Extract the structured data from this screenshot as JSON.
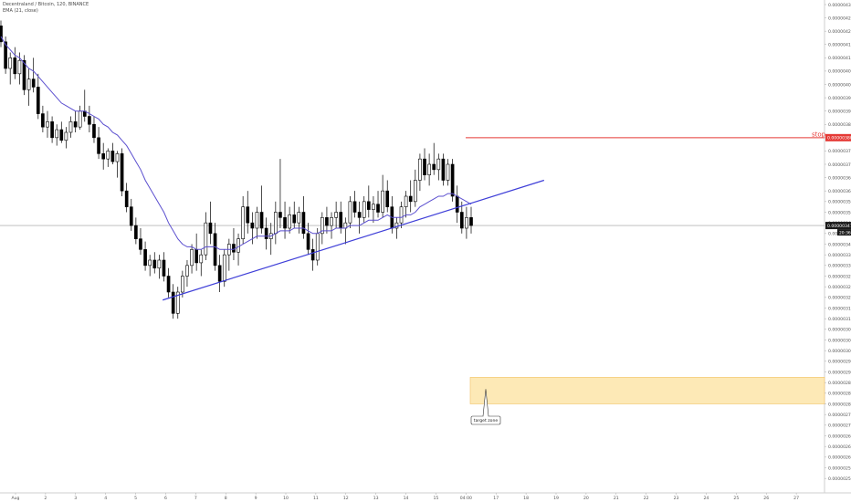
{
  "header": {
    "symbol_line": "Decentraland / Bitcoin, 120, BINANCE",
    "indicator_line": "EMA (21, close)"
  },
  "colors": {
    "candle": "#000000",
    "ema": "#5b4fcf",
    "trendline": "#3f3fd8",
    "stop_line": "#e53935",
    "target_zone_fill": "#fde9b6",
    "target_zone_border": "#f2c266",
    "last_price_line": "#9e9e9e",
    "axis_text": "#555555"
  },
  "chart_data": {
    "type": "candlestick",
    "indicator": "EMA (21, close)",
    "ylim": [
      2.5e-06,
      4.3e-06
    ],
    "yticks": [
      "0.00000430",
      "0.00000425",
      "0.00000420",
      "0.00000415",
      "0.00000410",
      "0.00000405",
      "0.00000400",
      "0.00000395",
      "0.00000390",
      "0.00000385",
      "0.00000380",
      "0.00000375",
      "0.00000370",
      "0.00000365",
      "0.00000360",
      "0.00000356",
      "0.00000352",
      "0.00000348",
      "0.00000344",
      "0.00000340",
      "0.00000336",
      "0.00000332",
      "0.00000328",
      "0.00000324",
      "0.00000320",
      "0.00000316",
      "0.00000312",
      "0.00000308",
      "0.00000304",
      "0.00000300",
      "0.00000296",
      "0.00000292",
      "0.00000288",
      "0.00000284",
      "0.00000280",
      "0.00000276",
      "0.00000272",
      "0.00000268",
      "0.00000264",
      "0.00000260",
      "0.00000256",
      "0.00000252"
    ],
    "xticks": [
      "Aug",
      "2",
      "3",
      "4",
      "5",
      "6",
      "7",
      "8",
      "9",
      "10",
      "11",
      "12",
      "13",
      "14",
      "15",
      "04:00",
      "17",
      "18",
      "19",
      "20",
      "21",
      "22",
      "23",
      "24",
      "25",
      "26",
      "27",
      "28"
    ],
    "price_labels": {
      "stop": "0.00000380",
      "last": "0.00000347",
      "countdown": "20:36"
    },
    "annotations": {
      "stop_text": "stop",
      "target_text": "target zone"
    },
    "levels": {
      "stop": 3.8e-06,
      "last_price": 3.47e-06,
      "target_zone": [
        2.8e-06,
        2.9e-06
      ]
    },
    "trendline": {
      "start": {
        "day": 4.9,
        "price": 3.19e-06
      },
      "end": {
        "day": 17.6,
        "price": 3.64e-06
      }
    },
    "candles": [
      [
        4.22e-06,
        4.24e-06,
        4.14e-06,
        4.16e-06
      ],
      [
        4.16e-06,
        4.18e-06,
        4.04e-06,
        4.06e-06
      ],
      [
        4.06e-06,
        4.12e-06,
        4e-06,
        4.1e-06
      ],
      [
        4.1e-06,
        4.14e-06,
        4.02e-06,
        4.04e-06
      ],
      [
        4.04e-06,
        4.12e-06,
        4e-06,
        4.09e-06
      ],
      [
        4.09e-06,
        4.11e-06,
        3.96e-06,
        3.98e-06
      ],
      [
        3.98e-06,
        4.06e-06,
        3.92e-06,
        4.02e-06
      ],
      [
        4.02e-06,
        4.1e-06,
        3.97e-06,
        3.99e-06
      ],
      [
        3.99e-06,
        4.04e-06,
        3.87e-06,
        3.89e-06
      ],
      [
        3.89e-06,
        3.92e-06,
        3.82e-06,
        3.84e-06
      ],
      [
        3.84e-06,
        3.9e-06,
        3.8e-06,
        3.86e-06
      ],
      [
        3.86e-06,
        3.88e-06,
        3.78e-06,
        3.8e-06
      ],
      [
        3.8e-06,
        3.85e-06,
        3.77e-06,
        3.83e-06
      ],
      [
        3.83e-06,
        3.86e-06,
        3.78e-06,
        3.79e-06
      ],
      [
        3.79e-06,
        3.84e-06,
        3.76e-06,
        3.82e-06
      ],
      [
        3.82e-06,
        3.88e-06,
        3.8e-06,
        3.86e-06
      ],
      [
        3.86e-06,
        3.9e-06,
        3.82e-06,
        3.84e-06
      ],
      [
        3.84e-06,
        3.92e-06,
        3.83e-06,
        3.9e-06
      ],
      [
        3.9e-06,
        3.98e-06,
        3.86e-06,
        3.88e-06
      ],
      [
        3.88e-06,
        3.92e-06,
        3.82e-06,
        3.85e-06
      ],
      [
        3.85e-06,
        3.88e-06,
        3.78e-06,
        3.8e-06
      ],
      [
        3.8e-06,
        3.84e-06,
        3.72e-06,
        3.74e-06
      ],
      [
        3.74e-06,
        3.78e-06,
        3.68e-06,
        3.72e-06
      ],
      [
        3.72e-06,
        3.76e-06,
        3.69e-06,
        3.75e-06
      ],
      [
        3.75e-06,
        3.78e-06,
        3.7e-06,
        3.71e-06
      ],
      [
        3.71e-06,
        3.75e-06,
        3.65e-06,
        3.74e-06
      ],
      [
        3.74e-06,
        3.76e-06,
        3.58e-06,
        3.6e-06
      ],
      [
        3.6e-06,
        3.63e-06,
        3.52e-06,
        3.54e-06
      ],
      [
        3.54e-06,
        3.57e-06,
        3.45e-06,
        3.47e-06
      ],
      [
        3.47e-06,
        3.5e-06,
        3.4e-06,
        3.42e-06
      ],
      [
        3.42e-06,
        3.46e-06,
        3.36e-06,
        3.38e-06
      ],
      [
        3.38e-06,
        3.41e-06,
        3.3e-06,
        3.32e-06
      ],
      [
        3.32e-06,
        3.36e-06,
        3.28e-06,
        3.34e-06
      ],
      [
        3.34e-06,
        3.37e-06,
        3.29e-06,
        3.31e-06
      ],
      [
        3.31e-06,
        3.36e-06,
        3.27e-06,
        3.34e-06
      ],
      [
        3.34e-06,
        3.37e-06,
        3.26e-06,
        3.28e-06
      ],
      [
        3.28e-06,
        3.31e-06,
        3.2e-06,
        3.22e-06
      ],
      [
        3.22e-06,
        3.25e-06,
        3.12e-06,
        3.14e-06
      ],
      [
        3.14e-06,
        3.24e-06,
        3.12e-06,
        3.22e-06
      ],
      [
        3.22e-06,
        3.3e-06,
        3.2e-06,
        3.28e-06
      ],
      [
        3.28e-06,
        3.34e-06,
        3.24e-06,
        3.32e-06
      ],
      [
        3.32e-06,
        3.4e-06,
        3.29e-06,
        3.38e-06
      ],
      [
        3.38e-06,
        3.44e-06,
        3.3e-06,
        3.33e-06
      ],
      [
        3.33e-06,
        3.38e-06,
        3.28e-06,
        3.36e-06
      ],
      [
        3.36e-06,
        3.52e-06,
        3.34e-06,
        3.48e-06
      ],
      [
        3.48e-06,
        3.56e-06,
        3.4e-06,
        3.44e-06
      ],
      [
        3.44e-06,
        3.48e-06,
        3.3e-06,
        3.32e-06
      ],
      [
        3.32e-06,
        3.36e-06,
        3.22e-06,
        3.26e-06
      ],
      [
        3.26e-06,
        3.38e-06,
        3.24e-06,
        3.36e-06
      ],
      [
        3.36e-06,
        3.42e-06,
        3.3e-06,
        3.4e-06
      ],
      [
        3.4e-06,
        3.46e-06,
        3.34e-06,
        3.37e-06
      ],
      [
        3.37e-06,
        3.44e-06,
        3.32e-06,
        3.42e-06
      ],
      [
        3.42e-06,
        3.58e-06,
        3.4e-06,
        3.54e-06
      ],
      [
        3.54e-06,
        3.6e-06,
        3.44e-06,
        3.48e-06
      ],
      [
        3.48e-06,
        3.52e-06,
        3.4e-06,
        3.46e-06
      ],
      [
        3.46e-06,
        3.54e-06,
        3.42e-06,
        3.52e-06
      ],
      [
        3.52e-06,
        3.62e-06,
        3.44e-06,
        3.46e-06
      ],
      [
        3.46e-06,
        3.5e-06,
        3.38e-06,
        3.42e-06
      ],
      [
        3.42e-06,
        3.48e-06,
        3.36e-06,
        3.44e-06
      ],
      [
        3.44e-06,
        3.56e-06,
        3.4e-06,
        3.52e-06
      ],
      [
        3.52e-06,
        3.72e-06,
        3.46e-06,
        3.5e-06
      ],
      [
        3.5e-06,
        3.56e-06,
        3.42e-06,
        3.46e-06
      ],
      [
        3.46e-06,
        3.54e-06,
        3.44e-06,
        3.51e-06
      ],
      [
        3.51e-06,
        3.56e-06,
        3.46e-06,
        3.48e-06
      ],
      [
        3.48e-06,
        3.54e-06,
        3.44e-06,
        3.52e-06
      ],
      [
        3.52e-06,
        3.58e-06,
        3.42e-06,
        3.44e-06
      ],
      [
        3.44e-06,
        3.48e-06,
        3.36e-06,
        3.38e-06
      ],
      [
        3.38e-06,
        3.42e-06,
        3.3e-06,
        3.34e-06
      ],
      [
        3.34e-06,
        3.46e-06,
        3.32e-06,
        3.44e-06
      ],
      [
        3.44e-06,
        3.52e-06,
        3.4e-06,
        3.5e-06
      ],
      [
        3.5e-06,
        3.54e-06,
        3.44e-06,
        3.47e-06
      ],
      [
        3.47e-06,
        3.52e-06,
        3.42e-06,
        3.5e-06
      ],
      [
        3.5e-06,
        3.56e-06,
        3.46e-06,
        3.52e-06
      ],
      [
        3.52e-06,
        3.56e-06,
        3.44e-06,
        3.46e-06
      ],
      [
        3.46e-06,
        3.5e-06,
        3.4e-06,
        3.48e-06
      ],
      [
        3.48e-06,
        3.58e-06,
        3.46e-06,
        3.56e-06
      ],
      [
        3.56e-06,
        3.6e-06,
        3.5e-06,
        3.52e-06
      ],
      [
        3.52e-06,
        3.56e-06,
        3.44e-06,
        3.5e-06
      ],
      [
        3.5e-06,
        3.58e-06,
        3.48e-06,
        3.56e-06
      ],
      [
        3.56e-06,
        3.62e-06,
        3.5e-06,
        3.53e-06
      ],
      [
        3.53e-06,
        3.58e-06,
        3.48e-06,
        3.55e-06
      ],
      [
        3.55e-06,
        3.6e-06,
        3.5e-06,
        3.52e-06
      ],
      [
        3.52e-06,
        3.66e-06,
        3.5e-06,
        3.6e-06
      ],
      [
        3.6e-06,
        3.64e-06,
        3.52e-06,
        3.54e-06
      ],
      [
        3.54e-06,
        3.58e-06,
        3.44e-06,
        3.46e-06
      ],
      [
        3.46e-06,
        3.5e-06,
        3.42e-06,
        3.48e-06
      ],
      [
        3.48e-06,
        3.56e-06,
        3.46e-06,
        3.54e-06
      ],
      [
        3.54e-06,
        3.6e-06,
        3.5e-06,
        3.58e-06
      ],
      [
        3.58e-06,
        3.64e-06,
        3.52e-06,
        3.56e-06
      ],
      [
        3.56e-06,
        3.68e-06,
        3.54e-06,
        3.64e-06
      ],
      [
        3.64e-06,
        3.74e-06,
        3.6e-06,
        3.72e-06
      ],
      [
        3.72e-06,
        3.76e-06,
        3.64e-06,
        3.66e-06
      ],
      [
        3.66e-06,
        3.74e-06,
        3.62e-06,
        3.7e-06
      ],
      [
        3.7e-06,
        3.78e-06,
        3.66e-06,
        3.68e-06
      ],
      [
        3.68e-06,
        3.74e-06,
        3.64e-06,
        3.72e-06
      ],
      [
        3.72e-06,
        3.74e-06,
        3.62e-06,
        3.64e-06
      ],
      [
        3.64e-06,
        3.72e-06,
        3.62e-06,
        3.7e-06
      ],
      [
        3.7e-06,
        3.72e-06,
        3.56e-06,
        3.58e-06
      ],
      [
        3.58e-06,
        3.62e-06,
        3.48e-06,
        3.52e-06
      ],
      [
        3.52e-06,
        3.56e-06,
        3.44e-06,
        3.46e-06
      ],
      [
        3.46e-06,
        3.54e-06,
        3.42e-06,
        3.5e-06
      ],
      [
        3.5e-06,
        3.54e-06,
        3.44e-06,
        3.47e-06
      ]
    ],
    "ema_values": [
      4.18e-06,
      4.15e-06,
      4.13e-06,
      4.11e-06,
      4.1e-06,
      4.08e-06,
      4.06e-06,
      4.05e-06,
      4.03e-06,
      4.01e-06,
      3.99e-06,
      3.97e-06,
      3.95e-06,
      3.93e-06,
      3.92e-06,
      3.91e-06,
      3.9e-06,
      3.9e-06,
      3.9e-06,
      3.89e-06,
      3.88e-06,
      3.87e-06,
      3.85e-06,
      3.84e-06,
      3.82e-06,
      3.81e-06,
      3.79e-06,
      3.77e-06,
      3.74e-06,
      3.71e-06,
      3.68e-06,
      3.64e-06,
      3.61e-06,
      3.58e-06,
      3.55e-06,
      3.52e-06,
      3.48e-06,
      3.45e-06,
      3.42e-06,
      3.4e-06,
      3.39e-06,
      3.39e-06,
      3.38e-06,
      3.38e-06,
      3.39e-06,
      3.39e-06,
      3.39e-06,
      3.38e-06,
      3.38e-06,
      3.38e-06,
      3.38e-06,
      3.39e-06,
      3.4e-06,
      3.41e-06,
      3.42e-06,
      3.43e-06,
      3.43e-06,
      3.43e-06,
      3.43e-06,
      3.44e-06,
      3.45e-06,
      3.45e-06,
      3.45e-06,
      3.46e-06,
      3.46e-06,
      3.46e-06,
      3.45e-06,
      3.44e-06,
      3.44e-06,
      3.45e-06,
      3.45e-06,
      3.45e-06,
      3.46e-06,
      3.46e-06,
      3.46e-06,
      3.47e-06,
      3.47e-06,
      3.47e-06,
      3.48e-06,
      3.49e-06,
      3.49e-06,
      3.49e-06,
      3.5e-06,
      3.51e-06,
      3.5e-06,
      3.5e-06,
      3.5e-06,
      3.51e-06,
      3.51e-06,
      3.52e-06,
      3.54e-06,
      3.55e-06,
      3.56e-06,
      3.57e-06,
      3.58e-06,
      3.58e-06,
      3.59e-06,
      3.59e-06,
      3.58e-06,
      3.57e-06,
      3.56e-06,
      3.55e-06
    ]
  }
}
